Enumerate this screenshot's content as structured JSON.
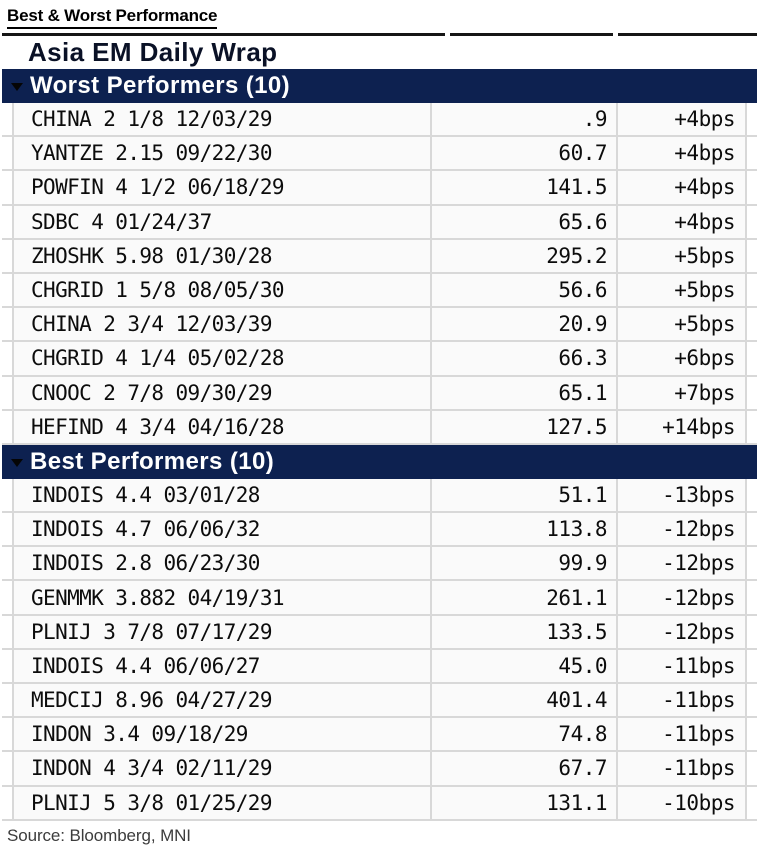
{
  "page": {
    "heading": "Best & Worst Performance",
    "source": "Source: Bloomberg, MNI"
  },
  "chart_data": {
    "type": "table",
    "title": "Asia EM Daily Wrap",
    "layout": {
      "columns_shown": [
        "bond name",
        "price/spread value (right-aligned)",
        "daily change in bps (right-aligned)"
      ],
      "column_headers_visible": false,
      "grid": "light gray lines, navy section header bars"
    },
    "colors": {
      "section_header_bg": "#0d2150",
      "section_header_text": "#ffffff",
      "row_bg": "#fafafa",
      "grid_line": "#d8d8d8",
      "title_text": "#0a1126"
    },
    "sections": [
      {
        "label": "Worst Performers (10)",
        "rows": [
          {
            "name": "CHINA 2 1/8 12/03/29",
            "price": ".9",
            "change": "+4bps"
          },
          {
            "name": "YANTZE 2.15 09/22/30",
            "price": "60.7",
            "change": "+4bps"
          },
          {
            "name": "POWFIN 4 1/2 06/18/29",
            "price": "141.5",
            "change": "+4bps"
          },
          {
            "name": "SDBC 4 01/24/37",
            "price": "65.6",
            "change": "+4bps"
          },
          {
            "name": "ZHOSHK 5.98 01/30/28",
            "price": "295.2",
            "change": "+5bps"
          },
          {
            "name": "CHGRID 1 5/8 08/05/30",
            "price": "56.6",
            "change": "+5bps"
          },
          {
            "name": "CHINA 2 3/4 12/03/39",
            "price": "20.9",
            "change": "+5bps"
          },
          {
            "name": "CHGRID 4 1/4 05/02/28",
            "price": "66.3",
            "change": "+6bps"
          },
          {
            "name": "CNOOC 2 7/8 09/30/29",
            "price": "65.1",
            "change": "+7bps"
          },
          {
            "name": "HEFIND 4 3/4 04/16/28",
            "price": "127.5",
            "change": "+14bps"
          }
        ]
      },
      {
        "label": "Best Performers (10)",
        "rows": [
          {
            "name": "INDOIS 4.4 03/01/28",
            "price": "51.1",
            "change": "-13bps"
          },
          {
            "name": "INDOIS 4.7 06/06/32",
            "price": "113.8",
            "change": "-12bps"
          },
          {
            "name": "INDOIS 2.8 06/23/30",
            "price": "99.9",
            "change": "-12bps"
          },
          {
            "name": "GENMMK 3.882 04/19/31",
            "price": "261.1",
            "change": "-12bps"
          },
          {
            "name": "PLNIJ 3 7/8 07/17/29",
            "price": "133.5",
            "change": "-12bps"
          },
          {
            "name": "INDOIS 4.4 06/06/27",
            "price": "45.0",
            "change": "-11bps"
          },
          {
            "name": "MEDCIJ 8.96 04/27/29",
            "price": "401.4",
            "change": "-11bps"
          },
          {
            "name": "INDON 3.4 09/18/29",
            "price": "74.8",
            "change": "-11bps"
          },
          {
            "name": "INDON 4 3/4 02/11/29",
            "price": "67.7",
            "change": "-11bps"
          },
          {
            "name": "PLNIJ 5 3/8 01/25/29",
            "price": "131.1",
            "change": "-10bps"
          }
        ]
      }
    ]
  }
}
